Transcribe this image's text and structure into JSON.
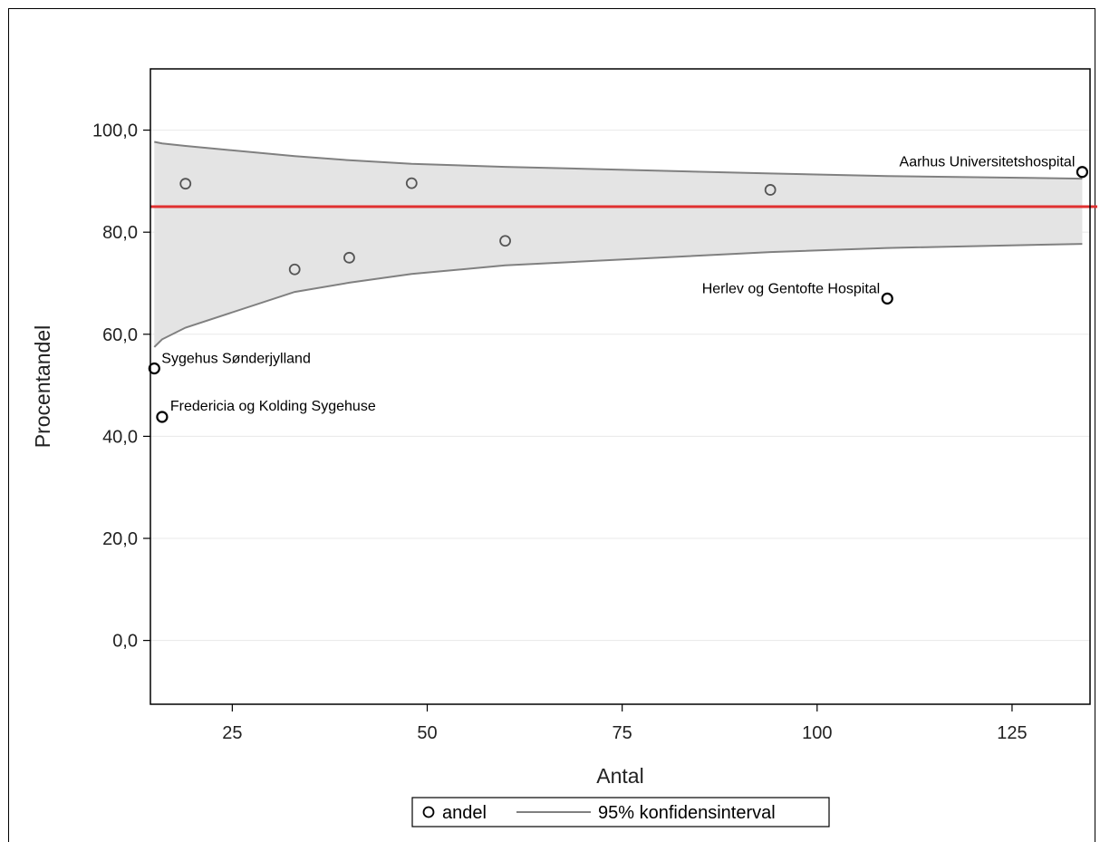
{
  "chart_data": {
    "type": "scatter",
    "xlabel": "Antal",
    "ylabel": "Procentandel",
    "xlim": [
      14.5,
      135
    ],
    "ylim": [
      -12.5,
      112
    ],
    "x_ticks": [
      25,
      50,
      75,
      100,
      125
    ],
    "y_ticks": [
      0,
      20,
      40,
      60,
      80,
      100
    ],
    "y_tick_labels": [
      "0,0",
      "20,0",
      "40,0",
      "60,0",
      "80,0",
      "100,0"
    ],
    "reference_line": {
      "y": 85,
      "color": "#e03030"
    },
    "grid": "horizontal",
    "series": [
      {
        "name": "andel",
        "kind": "scatter",
        "color": "#000000",
        "points": [
          {
            "x": 15,
            "y": 53.3,
            "label": "Sygehus Sønderjylland",
            "emphasis": true
          },
          {
            "x": 16,
            "y": 43.8,
            "label": "Fredericia og Kolding Sygehuse",
            "emphasis": true
          },
          {
            "x": 19,
            "y": 89.5,
            "label": ""
          },
          {
            "x": 33,
            "y": 72.7,
            "label": ""
          },
          {
            "x": 40,
            "y": 75.0,
            "label": ""
          },
          {
            "x": 48,
            "y": 89.6,
            "label": ""
          },
          {
            "x": 60,
            "y": 78.3,
            "label": ""
          },
          {
            "x": 94,
            "y": 88.3,
            "label": ""
          },
          {
            "x": 109,
            "y": 67.0,
            "label": "Herlev og Gentofte Hospital",
            "emphasis": true
          },
          {
            "x": 134,
            "y": 91.8,
            "label": "Aarhus Universitetshospital",
            "emphasis": true
          }
        ]
      },
      {
        "name": "95% konfidensinterval",
        "kind": "band",
        "color": "#808080",
        "fill": "#e4e4e4",
        "x": [
          15,
          16,
          19,
          33,
          40,
          48,
          60,
          94,
          109,
          134
        ],
        "upper": [
          97.7,
          97.4,
          96.9,
          94.9,
          94.1,
          93.4,
          92.8,
          91.5,
          91.0,
          90.5
        ],
        "lower": [
          57.5,
          59.0,
          61.3,
          68.3,
          70.1,
          71.8,
          73.5,
          76.1,
          76.9,
          77.7
        ]
      }
    ],
    "legend": {
      "position": "bottom-center",
      "entries": [
        "andel",
        "95% konfidensinterval"
      ]
    }
  }
}
